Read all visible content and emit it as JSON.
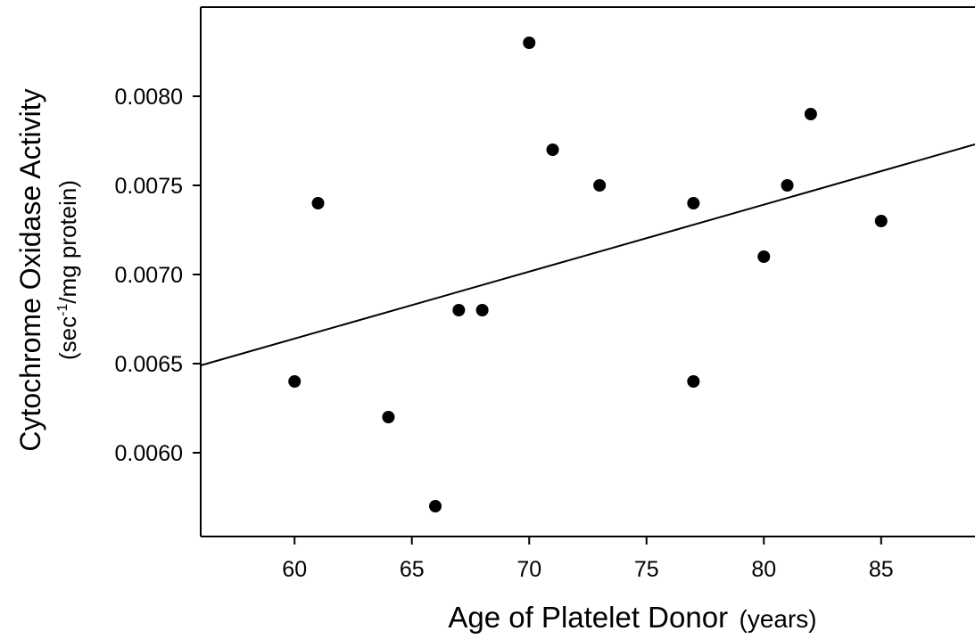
{
  "chart_data": {
    "type": "scatter",
    "xlabel": "Age of Platelet Donor",
    "xlabel_unit": "(years)",
    "ylabel": "Cytochrome Oxidase Activity",
    "ylabel_unit_pre": "(sec",
    "ylabel_unit_sup": "-1",
    "ylabel_unit_post": "/mg protein)",
    "xlim": [
      56,
      89
    ],
    "ylim": [
      0.00553,
      0.0085
    ],
    "x_ticks": [
      60,
      65,
      70,
      75,
      80,
      85
    ],
    "x_tick_labels": [
      "60",
      "65",
      "70",
      "75",
      "80",
      "85"
    ],
    "y_ticks": [
      0.006,
      0.0065,
      0.007,
      0.0075,
      0.008
    ],
    "y_tick_labels": [
      "0.0060",
      "0.0065",
      "0.0070",
      "0.0075",
      "0.0080"
    ],
    "grid": false,
    "legend": "none",
    "points": [
      {
        "x": 60,
        "y": 0.0064
      },
      {
        "x": 61,
        "y": 0.0074
      },
      {
        "x": 64,
        "y": 0.0062
      },
      {
        "x": 66,
        "y": 0.0057
      },
      {
        "x": 67,
        "y": 0.0068
      },
      {
        "x": 68,
        "y": 0.0068
      },
      {
        "x": 70,
        "y": 0.0083
      },
      {
        "x": 71,
        "y": 0.0077
      },
      {
        "x": 73,
        "y": 0.0075
      },
      {
        "x": 77,
        "y": 0.0074
      },
      {
        "x": 77,
        "y": 0.0064
      },
      {
        "x": 80,
        "y": 0.0071
      },
      {
        "x": 81,
        "y": 0.0075
      },
      {
        "x": 82,
        "y": 0.0079
      },
      {
        "x": 85,
        "y": 0.0073
      }
    ],
    "regression_line": {
      "x": [
        56,
        89
      ],
      "y": [
        0.00649,
        0.00773
      ]
    },
    "colors": {
      "points": "#000000",
      "line": "#000000",
      "axes": "#000000"
    }
  }
}
